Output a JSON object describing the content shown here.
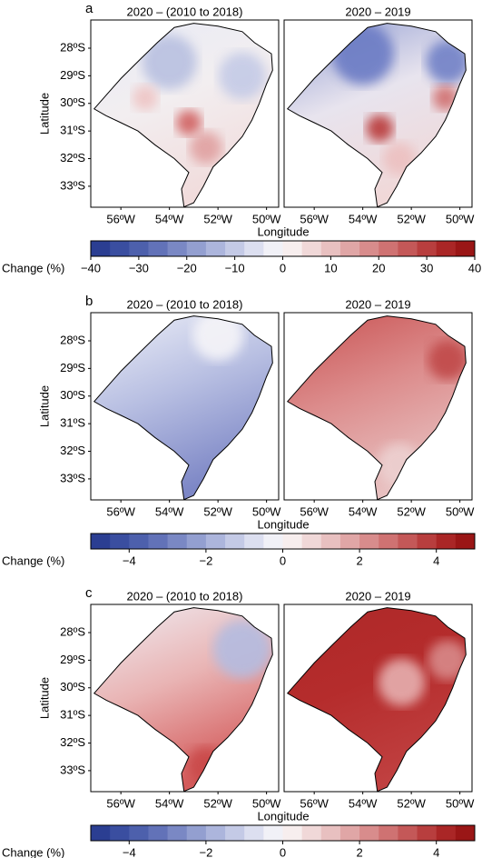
{
  "axes": {
    "ylabel": "Latitude",
    "xlabel": "Longitude",
    "lon_lim": [
      -57.24,
      -49.5
    ],
    "lat_lim": [
      -26.98,
      -33.76
    ],
    "lat_ticks": [
      {
        "value": -28,
        "label": "28ºS"
      },
      {
        "value": -29,
        "label": "29ºS"
      },
      {
        "value": -30,
        "label": "30ºS"
      },
      {
        "value": -31,
        "label": "31ºS"
      },
      {
        "value": -32,
        "label": "32ºS"
      },
      {
        "value": -33,
        "label": "33ºS"
      }
    ],
    "lon_ticks": [
      {
        "value": -56,
        "label": "56ºW"
      },
      {
        "value": -54,
        "label": "54ºW"
      },
      {
        "value": -52,
        "label": "52ºW"
      },
      {
        "value": -50,
        "label": "50ºW"
      }
    ]
  },
  "colorbar_label": "Change (%)",
  "panels": [
    {
      "label": "a",
      "titles": [
        "2020 – (2010 to 2018)",
        "2020 – 2019"
      ],
      "colorbar": {
        "range": [
          -40,
          40
        ],
        "ticks": [
          {
            "value": -40,
            "label": "−40"
          },
          {
            "value": -30,
            "label": "−30"
          },
          {
            "value": -20,
            "label": "−20"
          },
          {
            "value": -10,
            "label": "−10"
          },
          0,
          10,
          20,
          30,
          40
        ]
      }
    },
    {
      "label": "b",
      "titles": [
        "2020 – (2010 to 2018)",
        "2020 – 2019"
      ],
      "colorbar": {
        "range": [
          -5,
          5
        ],
        "ticks": [
          {
            "value": -4,
            "label": "−4"
          },
          {
            "value": -2,
            "label": "−2"
          },
          0,
          2,
          4
        ]
      }
    },
    {
      "label": "c",
      "titles": [
        "2020 – (2010 to 2018)",
        "2020 – 2019"
      ],
      "colorbar": {
        "range": [
          -5,
          5
        ],
        "ticks": [
          {
            "value": -4,
            "label": "−4"
          },
          {
            "value": -2,
            "label": "−2"
          },
          0,
          2,
          4
        ]
      }
    }
  ]
}
